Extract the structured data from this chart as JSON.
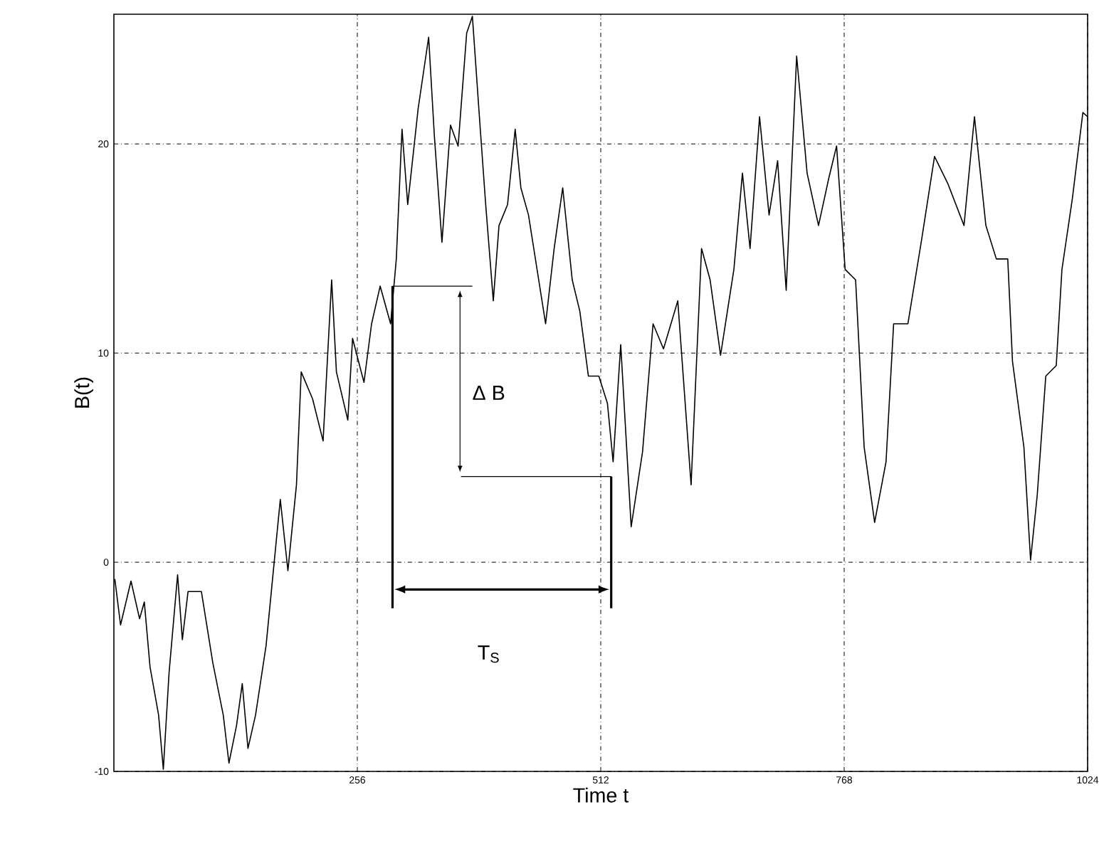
{
  "chart_data": {
    "type": "line",
    "xlabel": "Time t",
    "ylabel": "B(t)",
    "x": [
      1,
      7,
      18,
      27,
      32,
      38,
      47,
      52,
      58,
      67,
      72,
      78,
      92,
      104,
      115,
      121,
      129,
      135,
      141,
      149,
      160,
      166,
      175,
      183,
      192,
      197,
      209,
      220,
      229,
      234,
      246,
      251,
      263,
      271,
      280,
      291,
      297,
      303,
      309,
      320,
      331,
      337,
      345,
      354,
      362,
      371,
      377,
      385,
      391,
      399,
      405,
      414,
      422,
      428,
      436,
      445,
      454,
      463,
      472,
      482,
      490,
      499,
      510,
      519,
      525,
      533,
      544,
      556,
      567,
      578,
      593,
      607,
      618,
      627,
      638,
      652,
      661,
      669,
      679,
      689,
      698,
      707,
      718,
      729,
      741,
      752,
      760,
      769,
      780,
      789,
      800,
      812,
      820,
      835,
      849,
      863,
      877,
      894,
      905,
      917,
      928,
      940,
      945,
      957,
      964,
      971,
      980,
      991,
      997,
      1008,
      1019,
      1024
    ],
    "series": [
      {
        "color": "#000000",
        "values": [
          -0.8,
          -3,
          -0.9,
          -2.7,
          -1.9,
          -5,
          -7.3,
          -9.9,
          -5.3,
          -0.6,
          -3.7,
          -1.4,
          -1.4,
          -4.8,
          -7.3,
          -9.6,
          -7.8,
          -5.8,
          -8.9,
          -7.3,
          -4,
          -1.2,
          3,
          -0.4,
          3.7,
          9.1,
          7.8,
          5.8,
          13.5,
          9.1,
          6.8,
          10.7,
          8.6,
          11.4,
          13.2,
          11.4,
          14.5,
          20.7,
          17.1,
          21.7,
          25.1,
          20.4,
          15.3,
          20.9,
          19.9,
          25.3,
          26.1,
          20.9,
          17.1,
          12.5,
          16.1,
          17.1,
          20.7,
          17.9,
          16.6,
          14,
          11.4,
          15,
          17.9,
          13.5,
          12,
          8.9,
          8.9,
          7.6,
          4.8,
          10.4,
          1.7,
          5.3,
          11.4,
          10.2,
          12.5,
          3.7,
          15,
          13.5,
          9.9,
          14,
          18.6,
          15,
          21.3,
          16.6,
          19.2,
          13,
          24.2,
          18.6,
          16.1,
          18.4,
          19.9,
          14,
          13.5,
          5.5,
          1.9,
          4.8,
          11.4,
          11.4,
          15.3,
          19.4,
          18.1,
          16.1,
          21.3,
          16.1,
          14.5,
          14.5,
          9.6,
          5.5,
          0.1,
          3.2,
          8.9,
          9.4,
          14,
          17.4,
          21.5,
          21.3
        ]
      }
    ],
    "xlim": [
      0,
      1024
    ],
    "ylim": [
      -10,
      26.2
    ],
    "xticks": [
      256,
      512,
      768,
      1024
    ],
    "yticks": [
      -10,
      0,
      10,
      20
    ],
    "grid": true,
    "annotations": [
      "Δ B",
      "T$_{S}$"
    ]
  }
}
